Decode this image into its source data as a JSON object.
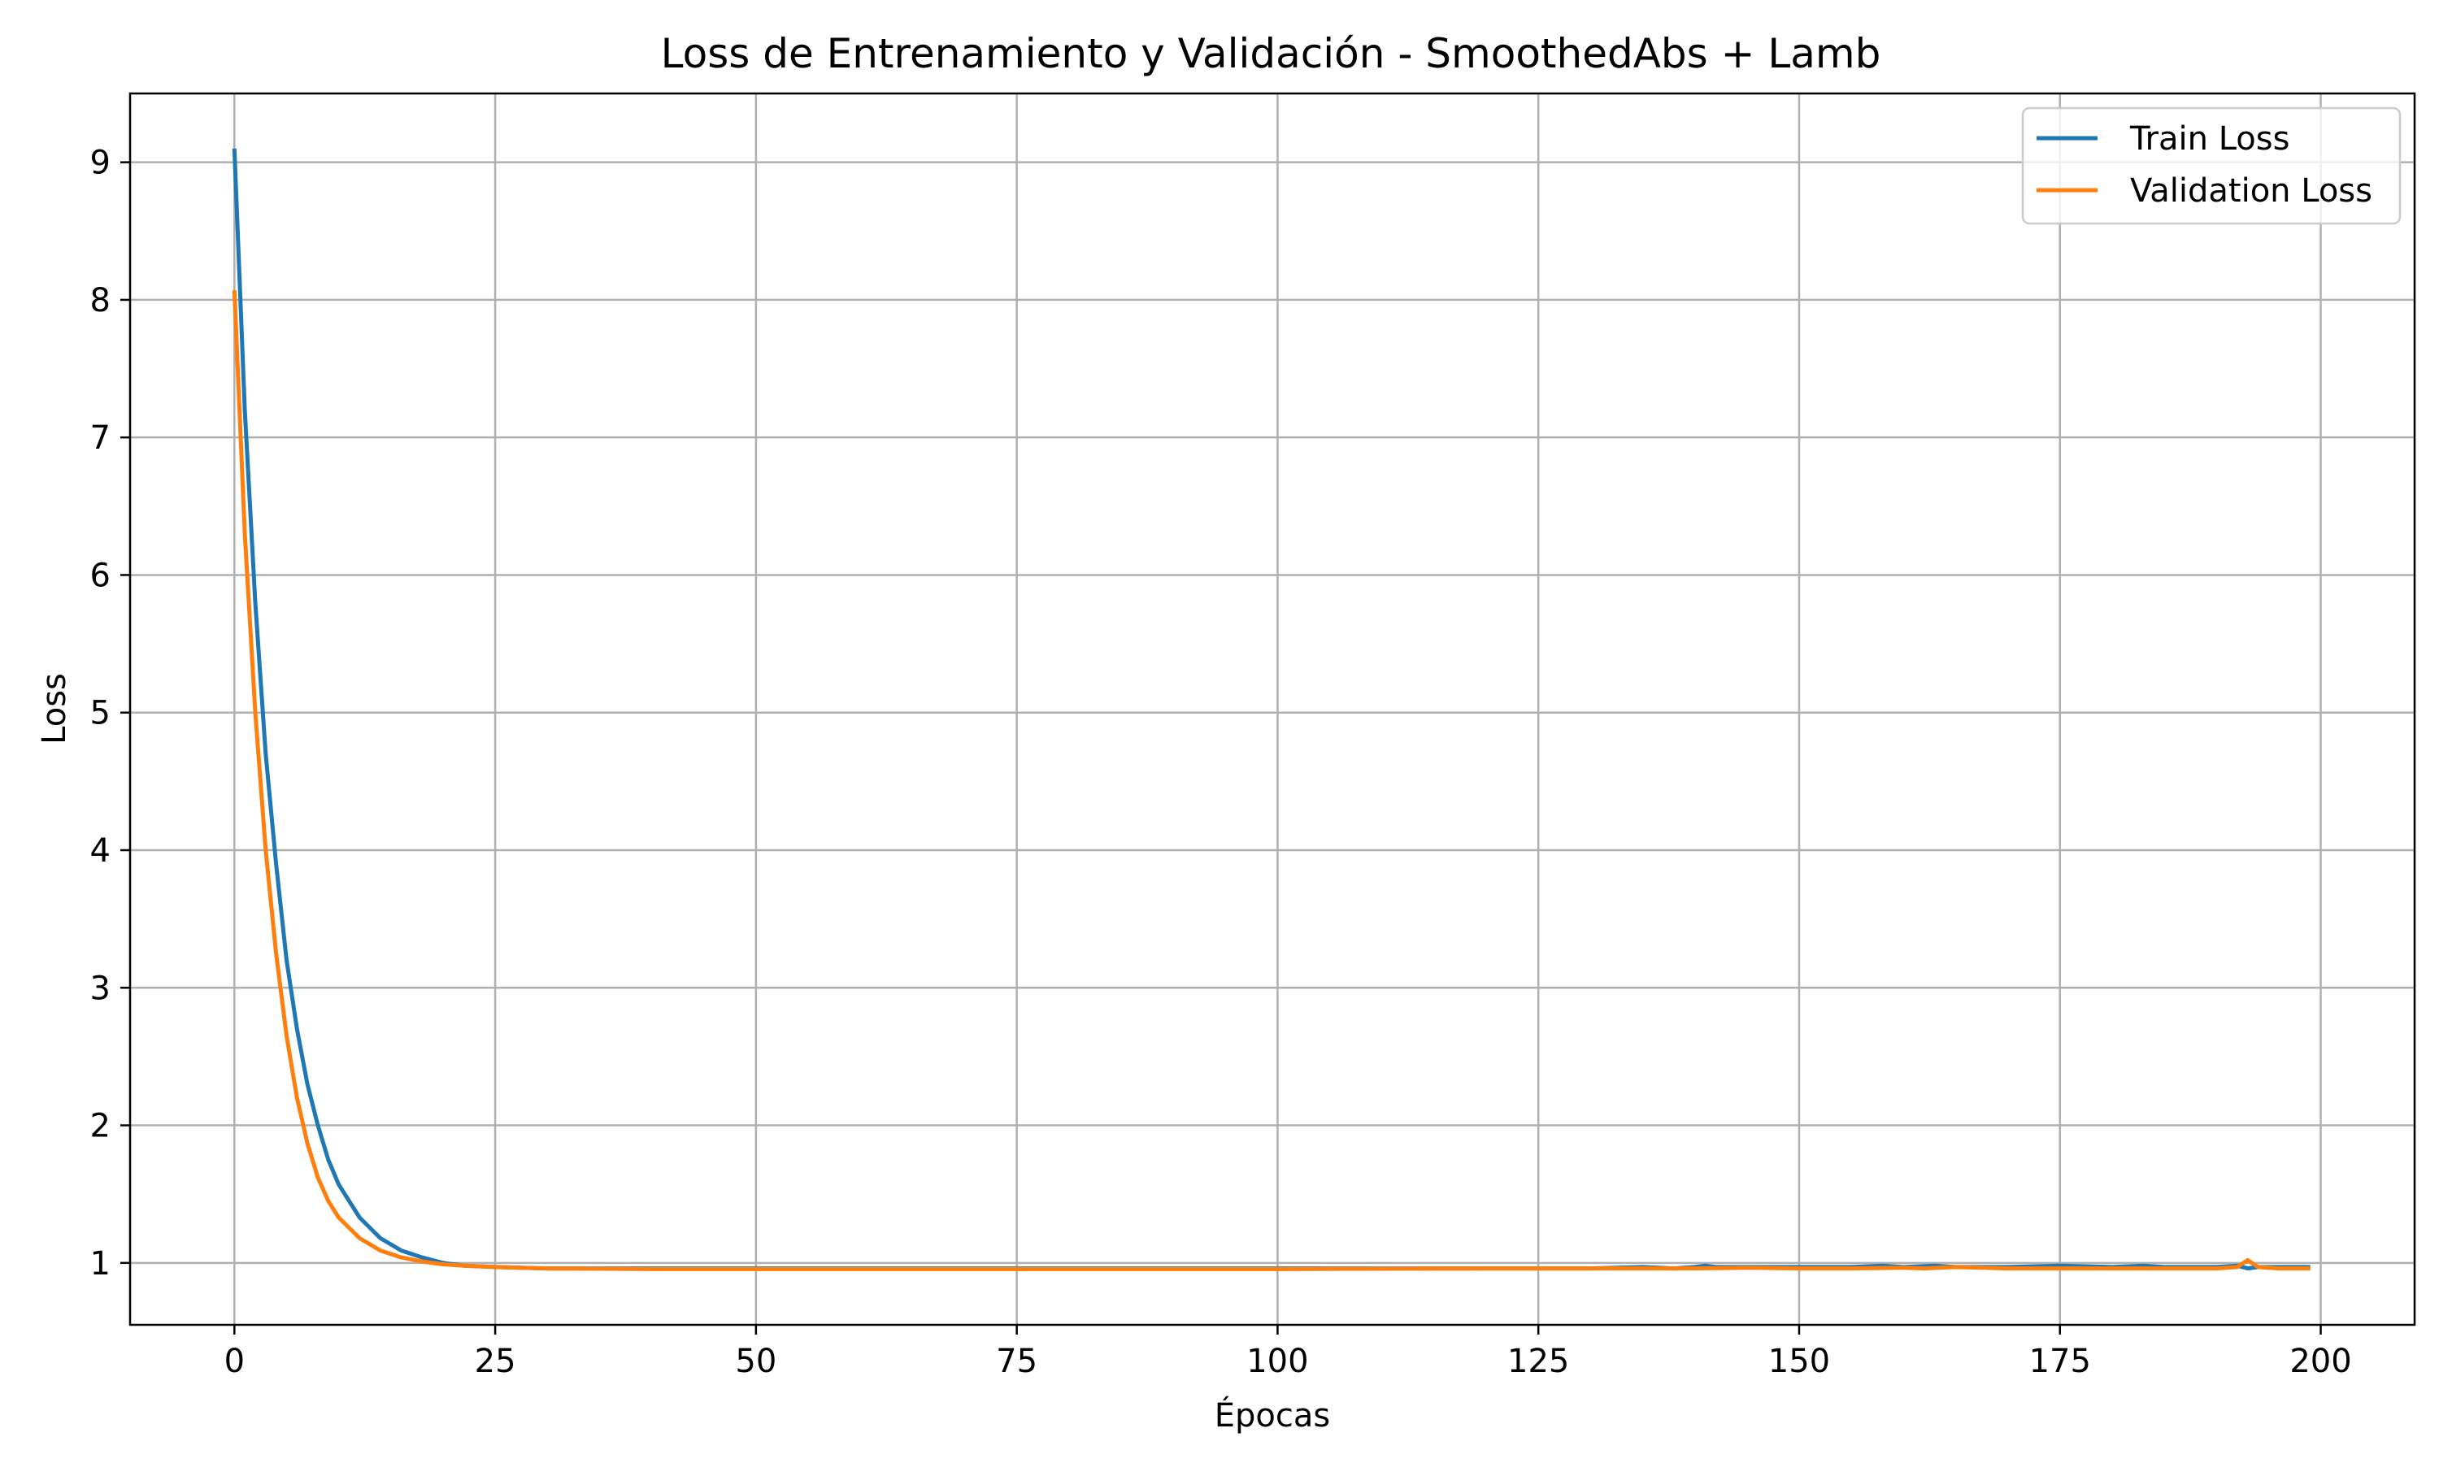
{
  "chart_data": {
    "type": "line",
    "title": "Loss de Entrenamiento y Validación - SmoothedAbs + Lamb",
    "xlabel": "Épocas",
    "ylabel": "Loss",
    "xlim": [
      -10,
      209
    ],
    "ylim": [
      0.55,
      9.5
    ],
    "xticks": [
      0,
      25,
      50,
      75,
      100,
      125,
      150,
      175,
      200
    ],
    "xtick_labels": [
      "0",
      "25",
      "50",
      "75",
      "100",
      "125",
      "150",
      "175",
      "200"
    ],
    "yticks": [
      1,
      2,
      3,
      4,
      5,
      6,
      7,
      8,
      9
    ],
    "ytick_labels": [
      "1",
      "2",
      "3",
      "4",
      "5",
      "6",
      "7",
      "8",
      "9"
    ],
    "grid": true,
    "legend_position": "top-right",
    "series": [
      {
        "name": "Train Loss",
        "color": "#1f77b4",
        "x": [
          0,
          1,
          2,
          3,
          4,
          5,
          6,
          7,
          8,
          9,
          10,
          12,
          14,
          16,
          18,
          20,
          22,
          25,
          30,
          40,
          60,
          80,
          100,
          120,
          130,
          135,
          138,
          140,
          141,
          142,
          145,
          150,
          155,
          158,
          160,
          163,
          165,
          170,
          175,
          180,
          183,
          185,
          190,
          192,
          193,
          194,
          196,
          199
        ],
        "y": [
          9.1,
          7.2,
          5.8,
          4.7,
          3.9,
          3.2,
          2.7,
          2.3,
          2.0,
          1.75,
          1.57,
          1.33,
          1.18,
          1.09,
          1.04,
          1.0,
          0.98,
          0.97,
          0.96,
          0.96,
          0.96,
          0.96,
          0.96,
          0.96,
          0.96,
          0.97,
          0.96,
          0.97,
          0.98,
          0.97,
          0.97,
          0.97,
          0.97,
          0.98,
          0.97,
          0.98,
          0.97,
          0.97,
          0.98,
          0.97,
          0.98,
          0.97,
          0.97,
          0.98,
          0.96,
          0.97,
          0.97,
          0.97
        ]
      },
      {
        "name": "Validation Loss",
        "color": "#ff7f0e",
        "x": [
          0,
          1,
          2,
          3,
          4,
          5,
          6,
          7,
          8,
          9,
          10,
          12,
          14,
          16,
          18,
          20,
          22,
          25,
          30,
          40,
          60,
          80,
          100,
          120,
          140,
          145,
          150,
          155,
          160,
          162,
          165,
          170,
          175,
          180,
          185,
          190,
          192,
          193,
          194,
          196,
          199
        ],
        "y": [
          8.07,
          6.3,
          5.0,
          4.0,
          3.25,
          2.65,
          2.2,
          1.87,
          1.62,
          1.45,
          1.33,
          1.18,
          1.09,
          1.04,
          1.01,
          0.99,
          0.98,
          0.97,
          0.96,
          0.955,
          0.955,
          0.955,
          0.955,
          0.96,
          0.96,
          0.965,
          0.96,
          0.96,
          0.965,
          0.96,
          0.97,
          0.96,
          0.96,
          0.96,
          0.96,
          0.96,
          0.97,
          1.02,
          0.97,
          0.96,
          0.96
        ]
      }
    ]
  }
}
